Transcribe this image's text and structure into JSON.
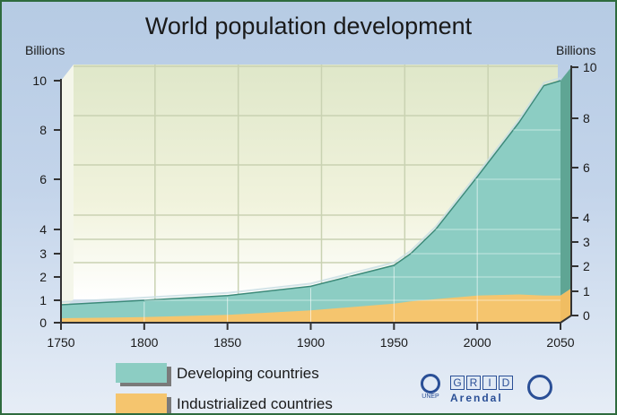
{
  "chart_data": {
    "type": "area",
    "stacked": true,
    "title": "World population development",
    "ylabel_left": "Billions",
    "ylabel_right": "Billions",
    "xlabel": "",
    "x_ticks": [
      "1750",
      "1800",
      "1850",
      "1900",
      "1950",
      "2000",
      "2050"
    ],
    "y_ticks_left": [
      "0",
      "1",
      "2",
      "3",
      "4",
      "6",
      "8",
      "10"
    ],
    "y_ticks_right": [
      "0",
      "1",
      "2",
      "3",
      "4",
      "6",
      "8",
      "10"
    ],
    "ylim": [
      0,
      10
    ],
    "xlim": [
      1750,
      2050
    ],
    "grid": true,
    "legend_position": "bottom-left",
    "x": [
      1750,
      1800,
      1850,
      1900,
      1950,
      1960,
      1975,
      2000,
      2025,
      2040,
      2050
    ],
    "series": [
      {
        "name": "Industrialized countries",
        "color": "#f5c56e",
        "values": [
          0.2,
          0.25,
          0.35,
          0.55,
          0.85,
          0.95,
          1.05,
          1.2,
          1.25,
          1.2,
          1.2
        ]
      },
      {
        "name": "Developing countries",
        "color": "#8ccdc3",
        "values": [
          0.6,
          0.75,
          0.85,
          1.05,
          1.65,
          2.05,
          2.95,
          4.9,
          7.05,
          8.6,
          8.8
        ]
      }
    ],
    "total": [
      0.8,
      1.0,
      1.2,
      1.6,
      2.5,
      3.0,
      4.0,
      6.1,
      8.3,
      9.8,
      10.0
    ]
  },
  "legend": {
    "items": [
      {
        "label": "Developing countries",
        "color": "#8ccdc3"
      },
      {
        "label": "Industrialized countries",
        "color": "#f5c56e"
      }
    ]
  },
  "logos": {
    "unep": "UNEP",
    "grid_letters": [
      "G",
      "R",
      "I",
      "D"
    ],
    "arendal": "Arendal"
  }
}
